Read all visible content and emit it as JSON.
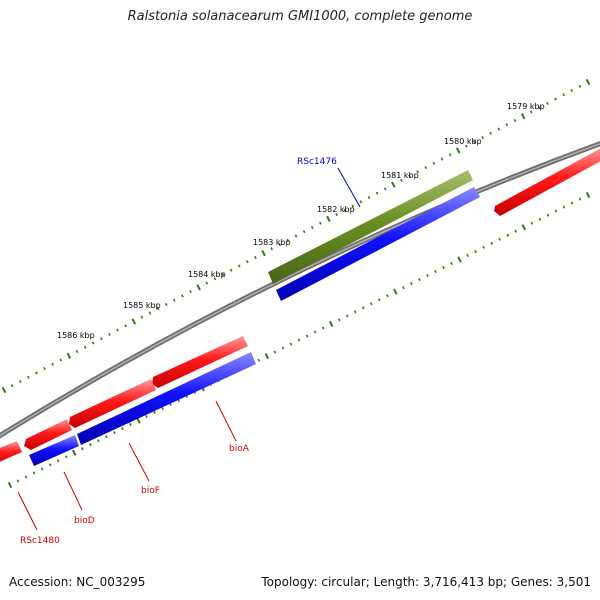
{
  "header": {
    "title": "Ralstonia solanacearum GMI1000, complete genome"
  },
  "footer": {
    "accession": "Accession: NC_003295",
    "summary": "Topology: circular; Length: 3,716,413 bp; Genes: 3,501"
  },
  "colors": {
    "backbone": "#808080",
    "ticks": "#2e7d12",
    "forward_cds": "#ff0000",
    "reverse_cds": "#0000ff",
    "other_feature": "#6b8e23",
    "red_label": "#cc0000",
    "blue_label": "#0000cc"
  },
  "scale_ticks": [
    {
      "label": "1579 kbp"
    },
    {
      "label": "1580 kbp"
    },
    {
      "label": "1581 kbp"
    },
    {
      "label": "1582 kbp"
    },
    {
      "label": "1583 kbp"
    },
    {
      "label": "1584 kbp"
    },
    {
      "label": "1585 kbp"
    },
    {
      "label": "1586 kbp"
    }
  ],
  "gene_labels": [
    {
      "name": "RSc1476",
      "color": "blue"
    },
    {
      "name": "bioA",
      "color": "red"
    },
    {
      "name": "bioF",
      "color": "red"
    },
    {
      "name": "bioD",
      "color": "red"
    },
    {
      "name": "RSc1480",
      "color": "red"
    }
  ]
}
